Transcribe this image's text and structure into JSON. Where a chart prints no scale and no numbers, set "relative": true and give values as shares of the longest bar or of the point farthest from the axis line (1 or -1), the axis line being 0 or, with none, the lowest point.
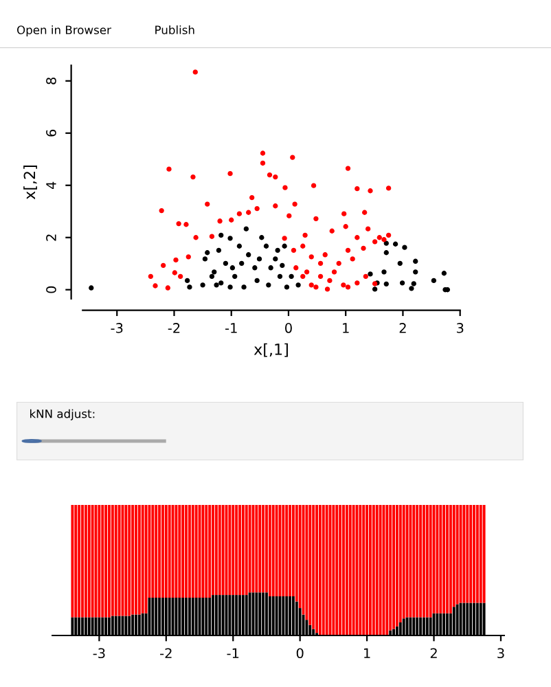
{
  "chart_data": [
    {
      "type": "other",
      "annotations": [
        "Open in Browser",
        "Publish"
      ]
    },
    {
      "type": "scatter",
      "xlabel": "x[,1]",
      "ylabel": "x[,2]",
      "xlim": [
        -3.6,
        3.0
      ],
      "ylim": [
        -0.35,
        8.6
      ],
      "xticks": [
        -3,
        -2,
        -1,
        0,
        1,
        2,
        3
      ],
      "yticks": [
        0,
        2,
        4,
        6,
        8
      ],
      "marker": "circle",
      "grid": false,
      "legend": false,
      "series": [
        {
          "color": "#000000",
          "x": [
            -3.45,
            -1.77,
            -1.73,
            -1.46,
            -1.42,
            -1.5,
            -1.3,
            -1.18,
            -1.02,
            -1.26,
            -1.1,
            -0.94,
            -0.86,
            -0.74,
            -0.7,
            -0.78,
            -0.59,
            -0.47,
            -0.39,
            -0.35,
            -0.55,
            -0.23,
            -0.15,
            -0.07,
            -0.03,
            -1.02,
            -0.98,
            -0.82,
            -0.31,
            -0.19,
            -0.11,
            0.05,
            0.17,
            -1.18,
            -1.34,
            -0.51,
            -1.22,
            1.71,
            1.87,
            2.03,
            1.71,
            2.22,
            1.95,
            2.22,
            1.67,
            1.99,
            2.19,
            2.54,
            2.72,
            2.74,
            1.43,
            1.55,
            1.51,
            1.71,
            2.15,
            2.78
          ],
          "values": [
            0.07,
            0.35,
            0.1,
            1.18,
            1.42,
            0.18,
            0.68,
            2.09,
            1.97,
            0.18,
            1.01,
            0.51,
            1.67,
            2.33,
            1.34,
            0.1,
            0.84,
            2.0,
            1.67,
            0.18,
            0.35,
            1.18,
            0.51,
            1.67,
            0.1,
            0.1,
            0.84,
            1.01,
            0.84,
            1.51,
            0.93,
            0.51,
            0.18,
            0.26,
            0.51,
            1.18,
            1.51,
            1.78,
            1.75,
            1.62,
            1.42,
            1.09,
            1.01,
            0.68,
            0.68,
            0.26,
            0.23,
            0.35,
            0.63,
            0.0,
            0.6,
            0.26,
            0.02,
            0.22,
            0.05,
            0.0
          ]
        },
        {
          "color": "#ff0000",
          "x": [
            -1.63,
            -2.09,
            -1.67,
            -1.02,
            -0.45,
            -0.45,
            0.07,
            -0.33,
            -0.23,
            -0.06,
            0.44,
            1.04,
            1.2,
            1.43,
            1.75,
            -2.22,
            -1.42,
            -0.64,
            -0.55,
            -0.23,
            0.11,
            0.01,
            -1.92,
            -1.79,
            -1.2,
            -1.0,
            -0.86,
            -0.7,
            0.48,
            0.97,
            1.33,
            1.39,
            0.76,
            -1.62,
            -1.34,
            -0.07,
            0.29,
            1.0,
            1.59,
            1.75,
            1.2,
            1.04,
            -1.97,
            -1.75,
            -2.19,
            -2.41,
            -2.33,
            -2.11,
            -1.99,
            -1.89,
            0.09,
            0.25,
            0.4,
            0.64,
            0.88,
            0.32,
            0.56,
            0.72,
            0.96,
            0.48,
            1.04,
            1.2,
            1.35,
            0.25,
            0.8,
            0.13,
            1.12,
            0.56,
            1.51,
            1.31,
            1.67,
            0.4,
            0.68,
            1.51
          ],
          "values": [
            8.34,
            4.62,
            4.32,
            4.45,
            5.23,
            4.85,
            5.07,
            4.4,
            4.32,
            3.91,
            3.99,
            4.65,
            3.87,
            3.79,
            3.89,
            3.03,
            3.28,
            3.53,
            3.11,
            3.21,
            3.28,
            2.83,
            2.53,
            2.5,
            2.63,
            2.67,
            2.91,
            2.96,
            2.72,
            2.91,
            2.96,
            2.33,
            2.25,
            2.0,
            2.04,
            1.97,
            2.09,
            2.42,
            2.0,
            2.09,
            2.0,
            1.51,
            1.14,
            1.26,
            0.93,
            0.51,
            0.15,
            0.07,
            0.65,
            0.51,
            1.51,
            1.67,
            1.26,
            1.34,
            1.01,
            0.68,
            0.51,
            0.35,
            0.18,
            0.1,
            0.1,
            0.26,
            0.51,
            0.51,
            0.68,
            0.84,
            1.18,
            1.01,
            1.84,
            1.59,
            1.92,
            0.18,
            0.02,
            0.23
          ]
        }
      ]
    },
    {
      "type": "other",
      "title": "kNN adjust:"
    },
    {
      "type": "bar",
      "stacked": true,
      "relative": true,
      "xlim": [
        -3.7,
        3.05
      ],
      "xticks": [
        -3,
        -2,
        -1,
        0,
        1,
        2,
        3
      ],
      "tick_labels": "x",
      "grid": false,
      "legend": false,
      "x": [
        -3.4,
        -3.35,
        -3.3,
        -3.25,
        -3.2,
        -3.15,
        -3.1,
        -3.05,
        -3.0,
        -2.95,
        -2.9,
        -2.85,
        -2.8,
        -2.75,
        -2.7,
        -2.65,
        -2.6,
        -2.55,
        -2.5,
        -2.45,
        -2.4,
        -2.35,
        -2.3,
        -2.25,
        -2.2,
        -2.15,
        -2.1,
        -2.05,
        -2.0,
        -1.95,
        -1.9,
        -1.85,
        -1.8,
        -1.75,
        -1.7,
        -1.65,
        -1.6,
        -1.55,
        -1.5,
        -1.45,
        -1.4,
        -1.35,
        -1.3,
        -1.25,
        -1.2,
        -1.15,
        -1.1,
        -1.05,
        -1.0,
        -0.95,
        -0.9,
        -0.85,
        -0.8,
        -0.75,
        -0.7,
        -0.65,
        -0.6,
        -0.55,
        -0.5,
        -0.45,
        -0.4,
        -0.35,
        -0.3,
        -0.25,
        -0.2,
        -0.15,
        -0.1,
        -0.05,
        0.0,
        0.05,
        0.1,
        0.15,
        0.2,
        0.25,
        0.3,
        0.35,
        0.4,
        0.45,
        0.5,
        0.55,
        0.6,
        0.65,
        0.7,
        0.75,
        0.8,
        0.85,
        0.9,
        0.95,
        1.0,
        1.05,
        1.1,
        1.15,
        1.2,
        1.25,
        1.3,
        1.35,
        1.4,
        1.45,
        1.5,
        1.55,
        1.6,
        1.65,
        1.7,
        1.75,
        1.8,
        1.85,
        1.9,
        1.95,
        2.0,
        2.05,
        2.1,
        2.15,
        2.2,
        2.25,
        2.3,
        2.35,
        2.4,
        2.45,
        2.5,
        2.55,
        2.6,
        2.65,
        2.7,
        2.75
      ],
      "series": [
        {
          "color": "#000000",
          "values": [
            0.14,
            0.14,
            0.14,
            0.14,
            0.14,
            0.14,
            0.14,
            0.14,
            0.14,
            0.14,
            0.14,
            0.14,
            0.15,
            0.15,
            0.15,
            0.15,
            0.15,
            0.15,
            0.16,
            0.16,
            0.16,
            0.17,
            0.17,
            0.29,
            0.29,
            0.29,
            0.29,
            0.29,
            0.29,
            0.29,
            0.29,
            0.29,
            0.29,
            0.29,
            0.29,
            0.29,
            0.29,
            0.29,
            0.29,
            0.29,
            0.29,
            0.29,
            0.31,
            0.31,
            0.31,
            0.31,
            0.31,
            0.31,
            0.31,
            0.31,
            0.31,
            0.31,
            0.31,
            0.33,
            0.33,
            0.33,
            0.33,
            0.33,
            0.33,
            0.3,
            0.3,
            0.3,
            0.3,
            0.3,
            0.3,
            0.3,
            0.3,
            0.26,
            0.21,
            0.16,
            0.12,
            0.08,
            0.05,
            0.02,
            0,
            0,
            0,
            0,
            0,
            0,
            0,
            0,
            0,
            0,
            0,
            0,
            0,
            0,
            0,
            0,
            0,
            0,
            0,
            0,
            0,
            0.04,
            0.05,
            0.07,
            0.1,
            0.13,
            0.14,
            0.14,
            0.14,
            0.14,
            0.14,
            0.14,
            0.14,
            0.14,
            0.17,
            0.17,
            0.17,
            0.17,
            0.17,
            0.17,
            0.22,
            0.24,
            0.25,
            0.25,
            0.25,
            0.25,
            0.25,
            0.25,
            0.25,
            0.25
          ]
        },
        {
          "color": "#ff0000",
          "values": [
            0.86,
            0.86,
            0.86,
            0.86,
            0.86,
            0.86,
            0.86,
            0.86,
            0.86,
            0.86,
            0.86,
            0.86,
            0.85,
            0.85,
            0.85,
            0.85,
            0.85,
            0.85,
            0.84,
            0.84,
            0.84,
            0.83,
            0.83,
            0.71,
            0.71,
            0.71,
            0.71,
            0.71,
            0.71,
            0.71,
            0.71,
            0.71,
            0.71,
            0.71,
            0.71,
            0.71,
            0.71,
            0.71,
            0.71,
            0.71,
            0.71,
            0.71,
            0.69,
            0.69,
            0.69,
            0.69,
            0.69,
            0.69,
            0.69,
            0.69,
            0.69,
            0.69,
            0.69,
            0.67,
            0.67,
            0.67,
            0.67,
            0.67,
            0.67,
            0.7,
            0.7,
            0.7,
            0.7,
            0.7,
            0.7,
            0.7,
            0.7,
            0.74,
            0.79,
            0.84,
            0.88,
            0.92,
            0.95,
            0.98,
            1,
            1,
            1,
            1,
            1,
            1,
            1,
            1,
            1,
            1,
            1,
            1,
            1,
            1,
            1,
            1,
            1,
            1,
            1,
            1,
            1,
            0.96,
            0.95,
            0.93,
            0.9,
            0.87,
            0.86,
            0.86,
            0.86,
            0.86,
            0.86,
            0.86,
            0.86,
            0.86,
            0.83,
            0.83,
            0.83,
            0.83,
            0.83,
            0.83,
            0.78,
            0.76,
            0.75,
            0.75,
            0.75,
            0.75,
            0.75,
            0.75,
            0.75,
            0.75
          ]
        }
      ]
    }
  ]
}
